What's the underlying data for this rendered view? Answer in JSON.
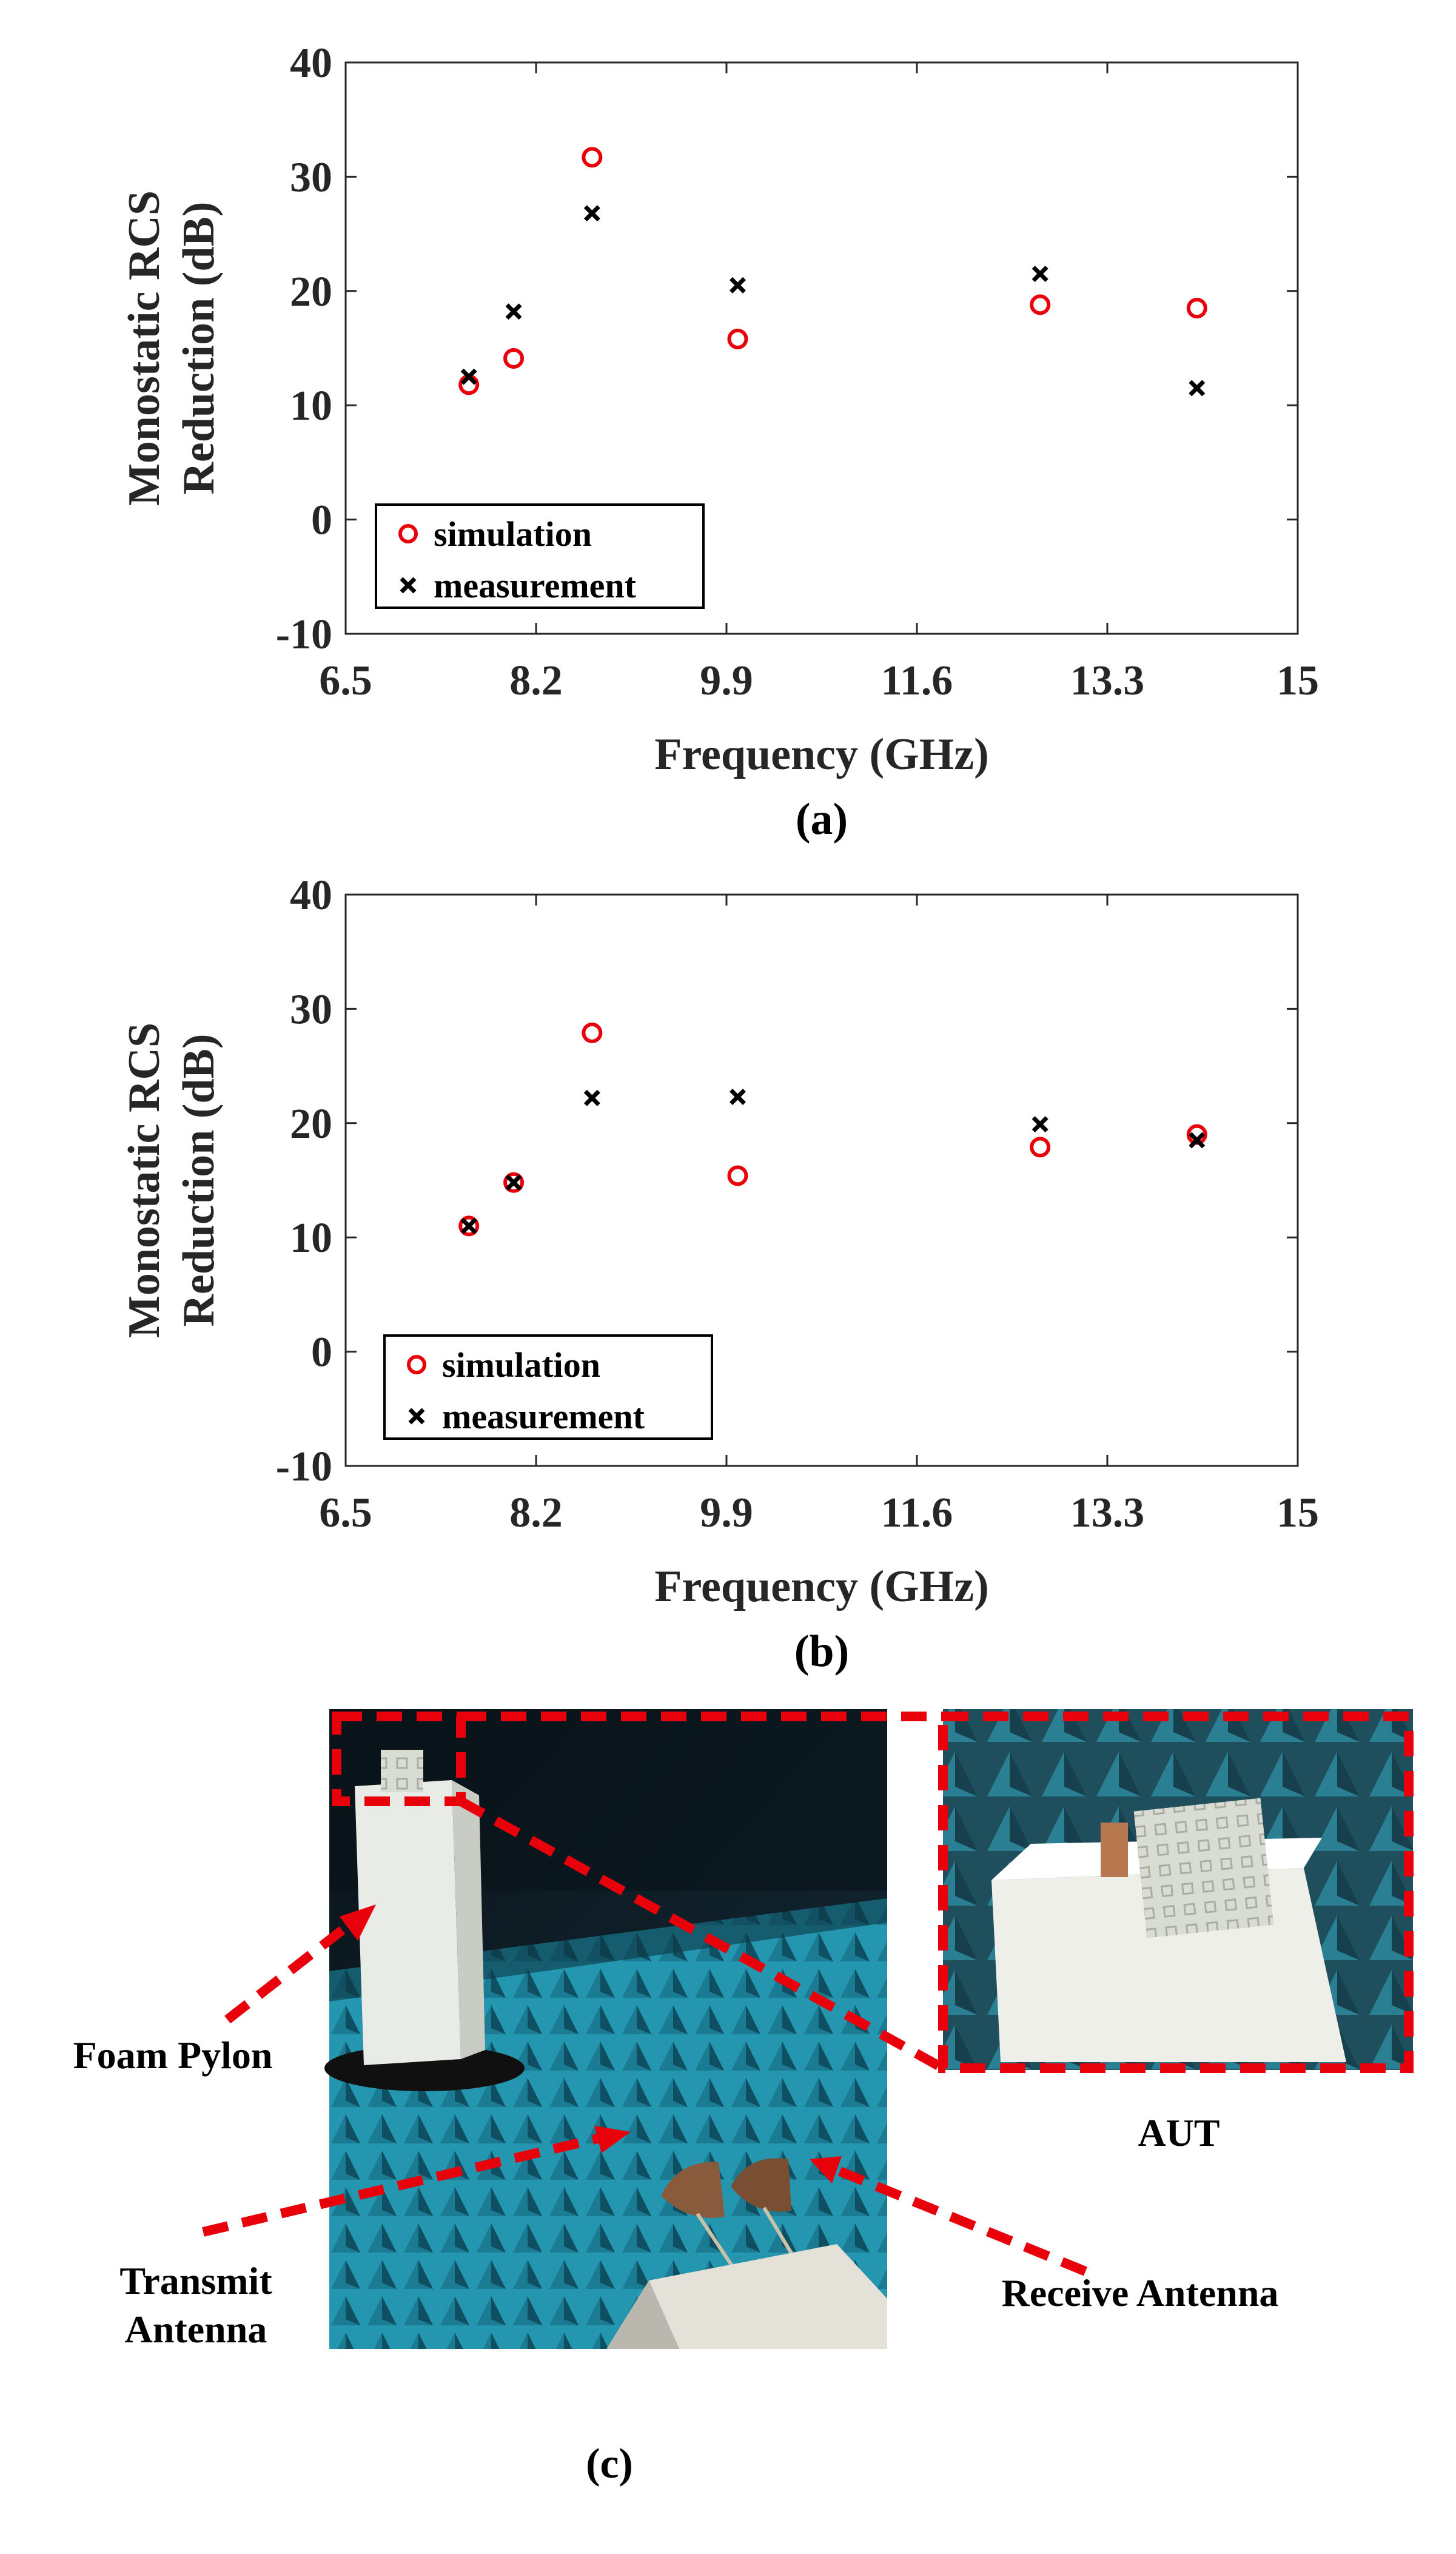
{
  "chart_data": [
    {
      "type": "scatter",
      "panel_label": "(a)",
      "xlabel": "Frequency (GHz)",
      "ylabel": [
        "Monostatic RCS",
        "Reduction (dB)"
      ],
      "xlim": [
        6.5,
        15
      ],
      "ylim": [
        -10,
        40
      ],
      "xticks": [
        "6.5",
        "8.2",
        "9.9",
        "11.6",
        "13.3",
        "15"
      ],
      "yticks": [
        "-10",
        "0",
        "10",
        "20",
        "30",
        "40"
      ],
      "grid": false,
      "legend_position": "bottom-left",
      "series": [
        {
          "name": "simulation",
          "marker": "circle",
          "color": "#e8000b",
          "x": [
            7.6,
            8.0,
            8.7,
            10.0,
            12.7,
            14.1
          ],
          "y": [
            11.8,
            14.1,
            31.7,
            15.8,
            18.8,
            18.5
          ]
        },
        {
          "name": "measurement",
          "marker": "x",
          "color": "#000000",
          "x": [
            7.6,
            8.0,
            8.7,
            10.0,
            12.7,
            14.1
          ],
          "y": [
            12.5,
            18.2,
            26.8,
            20.5,
            21.5,
            11.5
          ]
        }
      ]
    },
    {
      "type": "scatter",
      "panel_label": "(b)",
      "xlabel": "Frequency (GHz)",
      "ylabel": [
        "Monostatic RCS",
        "Reduction (dB)"
      ],
      "xlim": [
        6.5,
        15
      ],
      "ylim": [
        -10,
        40
      ],
      "xticks": [
        "6.5",
        "8.2",
        "9.9",
        "11.6",
        "13.3",
        "15"
      ],
      "yticks": [
        "-10",
        "0",
        "10",
        "20",
        "30",
        "40"
      ],
      "grid": false,
      "legend_position": "bottom-left",
      "series": [
        {
          "name": "simulation",
          "marker": "circle",
          "color": "#e8000b",
          "x": [
            7.6,
            8.0,
            8.7,
            10.0,
            12.7,
            14.1
          ],
          "y": [
            11.0,
            14.8,
            27.9,
            15.4,
            17.9,
            19.0
          ]
        },
        {
          "name": "measurement",
          "marker": "x",
          "color": "#000000",
          "x": [
            7.6,
            8.0,
            8.7,
            10.0,
            12.7,
            14.1
          ],
          "y": [
            11.0,
            14.8,
            22.2,
            22.3,
            19.9,
            18.5
          ]
        }
      ]
    }
  ],
  "photo": {
    "panel_label": "(c)",
    "labels": {
      "foam_pylon": "Foam Pylon",
      "aut": "AUT",
      "receive_antenna": "Receive Antenna",
      "transmit_antenna": [
        "Transmit",
        "Antenna"
      ]
    },
    "colors": {
      "chamber_dark": "#0e1a22",
      "absorber_teal": "#1f8fa6",
      "callout_red": "#e8000b",
      "foam_white": "#e9ebe6",
      "antenna_copper": "#8a5a3c"
    }
  }
}
